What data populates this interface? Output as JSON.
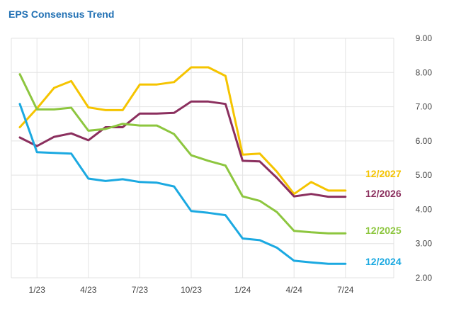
{
  "chart_data": {
    "type": "line",
    "title": "EPS Consensus Trend",
    "x_tick_labels": [
      "1/23",
      "4/23",
      "7/23",
      "10/23",
      "1/24",
      "4/24",
      "7/24"
    ],
    "y_tick_labels": [
      "2.00",
      "3.00",
      "4.00",
      "5.00",
      "6.00",
      "7.00",
      "8.00",
      "9.00"
    ],
    "ylim": [
      2,
      9
    ],
    "grid": true,
    "x": [
      "2022-12",
      "2023-01",
      "2023-02",
      "2023-03",
      "2023-04",
      "2023-05",
      "2023-06",
      "2023-07",
      "2023-08",
      "2023-09",
      "2023-10",
      "2023-11",
      "2023-12",
      "2024-01",
      "2024-02",
      "2024-03",
      "2024-04",
      "2024-05",
      "2024-06",
      "2024-07"
    ],
    "series": [
      {
        "name": "12/2027",
        "color": "#f5c400",
        "values": [
          6.4,
          6.95,
          7.55,
          7.75,
          6.98,
          6.9,
          6.9,
          7.65,
          7.65,
          7.72,
          8.15,
          8.15,
          7.9,
          5.6,
          5.63,
          5.1,
          4.45,
          4.8,
          4.55,
          4.55
        ]
      },
      {
        "name": "12/2026",
        "color": "#8b2f5e",
        "values": [
          6.1,
          5.85,
          6.12,
          6.22,
          6.02,
          6.4,
          6.4,
          6.8,
          6.8,
          6.82,
          7.15,
          7.15,
          7.08,
          5.42,
          5.4,
          4.92,
          4.38,
          4.45,
          4.37,
          4.37
        ]
      },
      {
        "name": "12/2025",
        "color": "#8dc63f",
        "values": [
          7.95,
          6.92,
          6.92,
          6.97,
          6.3,
          6.35,
          6.5,
          6.45,
          6.45,
          6.2,
          5.58,
          5.42,
          5.28,
          4.38,
          4.25,
          3.92,
          3.37,
          3.33,
          3.3,
          3.3
        ]
      },
      {
        "name": "12/2024",
        "color": "#1ba9e1",
        "values": [
          7.08,
          5.67,
          5.65,
          5.63,
          4.9,
          4.83,
          4.88,
          4.8,
          4.78,
          4.67,
          3.95,
          3.9,
          3.83,
          3.15,
          3.1,
          2.88,
          2.5,
          2.45,
          2.41,
          2.41
        ]
      }
    ]
  }
}
